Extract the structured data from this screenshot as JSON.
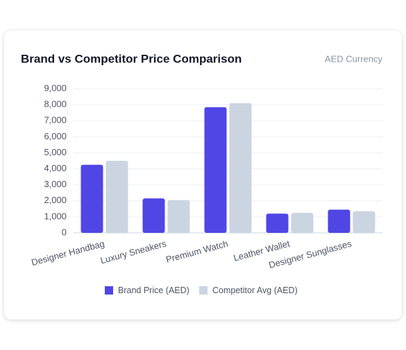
{
  "chart_data": {
    "type": "bar",
    "title": "Brand vs Competitor Price Comparison",
    "subtitle": "AED Currency",
    "categories": [
      "Designer Handbag",
      "Luxury Sneakers",
      "Premium Watch",
      "Leather Wallet",
      "Designer Sunglasses"
    ],
    "series": [
      {
        "name": "Brand Price (AED)",
        "color": "#4f46e5",
        "values": [
          4250,
          2150,
          7850,
          1200,
          1450
        ]
      },
      {
        "name": "Competitor Avg (AED)",
        "color": "#cbd5e1",
        "values": [
          4500,
          2050,
          8100,
          1250,
          1350
        ]
      }
    ],
    "ylim": [
      0,
      9000
    ],
    "yticks": [
      0,
      {
        "value": 1000,
        "label": "1,000"
      },
      {
        "value": 2000,
        "label": "2,000"
      },
      {
        "value": 3000,
        "label": "3,000"
      },
      {
        "value": 4000,
        "label": "4,000"
      },
      {
        "value": 5000,
        "label": "5,000"
      },
      {
        "value": 6000,
        "label": "6,000"
      },
      {
        "value": 7000,
        "label": "7,000"
      },
      {
        "value": 8000,
        "label": "8,000"
      },
      {
        "value": 9000,
        "label": "9,000"
      }
    ],
    "grid": true,
    "legend": "bottom"
  }
}
